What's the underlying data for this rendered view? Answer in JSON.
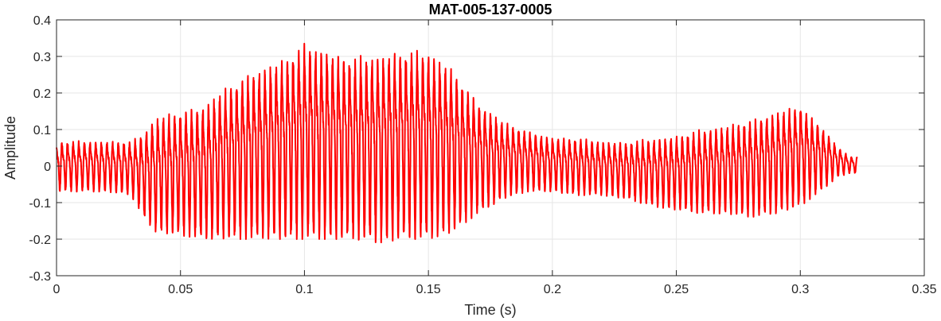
{
  "chart_data": {
    "type": "line",
    "title": "MAT-005-137-0005",
    "xlabel": "Time (s)",
    "ylabel": "Amplitude",
    "xlim": [
      0,
      0.35
    ],
    "ylim": [
      -0.3,
      0.4
    ],
    "xticks": [
      0,
      0.05,
      0.1,
      0.15,
      0.2,
      0.25,
      0.3,
      0.35
    ],
    "xtick_labels": [
      "0",
      "0.05",
      "0.1",
      "0.15",
      "0.2",
      "0.25",
      "0.3",
      "0.35"
    ],
    "yticks": [
      -0.3,
      -0.2,
      -0.1,
      0,
      0.1,
      0.2,
      0.3,
      0.4
    ],
    "ytick_labels": [
      "-0.3",
      "-0.2",
      "-0.1",
      "0",
      "0.1",
      "0.2",
      "0.3",
      "0.4"
    ],
    "grid": true,
    "box": true,
    "series": [
      {
        "color": "#ff0000",
        "envelope": {
          "t": [
            0,
            0.01,
            0.02,
            0.03,
            0.035,
            0.04,
            0.05,
            0.06,
            0.07,
            0.08,
            0.09,
            0.1,
            0.11,
            0.12,
            0.13,
            0.14,
            0.15,
            0.16,
            0.17,
            0.18,
            0.19,
            0.2,
            0.21,
            0.22,
            0.23,
            0.24,
            0.25,
            0.26,
            0.27,
            0.28,
            0.29,
            0.3,
            0.31,
            0.315,
            0.32,
            0.323
          ],
          "upper": [
            0.08,
            0.08,
            0.08,
            0.08,
            0.11,
            0.16,
            0.18,
            0.2,
            0.26,
            0.3,
            0.33,
            0.38,
            0.36,
            0.34,
            0.35,
            0.36,
            0.36,
            0.3,
            0.2,
            0.14,
            0.11,
            0.09,
            0.09,
            0.08,
            0.08,
            0.09,
            0.1,
            0.12,
            0.13,
            0.15,
            0.17,
            0.19,
            0.11,
            0.06,
            0.03,
            0.03
          ],
          "lower": [
            -0.07,
            -0.07,
            -0.07,
            -0.08,
            -0.14,
            -0.18,
            -0.19,
            -0.2,
            -0.2,
            -0.2,
            -0.2,
            -0.2,
            -0.2,
            -0.2,
            -0.21,
            -0.2,
            -0.2,
            -0.18,
            -0.13,
            -0.09,
            -0.07,
            -0.07,
            -0.08,
            -0.08,
            -0.09,
            -0.11,
            -0.12,
            -0.13,
            -0.13,
            -0.14,
            -0.13,
            -0.11,
            -0.06,
            -0.03,
            -0.02,
            -0.02
          ]
        },
        "cycles": 142
      }
    ]
  }
}
